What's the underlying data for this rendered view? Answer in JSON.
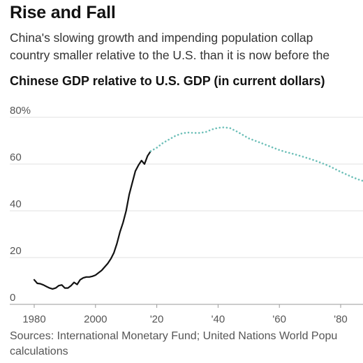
{
  "header": {
    "title": "Rise and Fall",
    "subtitle_line1": "China's slowing growth and impending population collap",
    "subtitle_line2": "country smaller relative to the U.S. than it is now before the"
  },
  "chart_title": "Chinese GDP relative to U.S. GDP (in current dollars)",
  "source_line1": "Sources: International Monetary Fund; United Nations World Popu",
  "source_line2": "calculations",
  "colors": {
    "actual": "#121212",
    "projected": "#6dbfb8",
    "grid": "#e0e0e0"
  },
  "chart_data": {
    "type": "line",
    "title": "Chinese GDP relative to U.S. GDP (in current dollars)",
    "xlabel": "",
    "ylabel": "",
    "xlim": [
      1975,
      2090
    ],
    "ylim": [
      0,
      80
    ],
    "y_ticks": [
      {
        "value": 0,
        "label": "0"
      },
      {
        "value": 20,
        "label": "20"
      },
      {
        "value": 40,
        "label": "40"
      },
      {
        "value": 60,
        "label": "60"
      },
      {
        "value": 80,
        "label": "80%"
      }
    ],
    "x_ticks": [
      {
        "value": 1980,
        "label": "1980"
      },
      {
        "value": 2000,
        "label": "2000"
      },
      {
        "value": 2020,
        "label": "'20"
      },
      {
        "value": 2040,
        "label": "'40"
      },
      {
        "value": 2060,
        "label": "'60"
      },
      {
        "value": 2080,
        "label": "'80"
      }
    ],
    "grid": true,
    "series": [
      {
        "style": "solid",
        "x": [
          1980,
          1981,
          1982,
          1983,
          1984,
          1985,
          1986,
          1987,
          1988,
          1989,
          1990,
          1991,
          1992,
          1993,
          1994,
          1995,
          1996,
          1997,
          1998,
          1999,
          2000,
          2001,
          2002,
          2003,
          2004,
          2005,
          2006,
          2007,
          2008,
          2009,
          2010,
          2011,
          2012,
          2013,
          2014,
          2015,
          2016,
          2017,
          2018
        ],
        "y": [
          10.5,
          9,
          8.8,
          8.3,
          7.6,
          7,
          6.6,
          7,
          8,
          8.3,
          7,
          7,
          8,
          9.4,
          8.5,
          10.5,
          11.3,
          11.7,
          11.7,
          12,
          12.5,
          13.5,
          14.5,
          16,
          17.5,
          19.5,
          22,
          26,
          31,
          35,
          40,
          47,
          52,
          57,
          59.5,
          61.5,
          60,
          63.5,
          65.5
        ]
      },
      {
        "style": "dotted",
        "x": [
          2018,
          2020,
          2022,
          2024,
          2026,
          2028,
          2030,
          2032,
          2034,
          2036,
          2038,
          2040,
          2042,
          2044,
          2046,
          2048,
          2050,
          2052,
          2054,
          2056,
          2058,
          2060,
          2062,
          2064,
          2066,
          2068,
          2070,
          2072,
          2074,
          2076,
          2078,
          2080,
          2082,
          2084,
          2086,
          2088,
          2090
        ],
        "y": [
          65.5,
          67,
          69,
          70.5,
          72,
          73,
          73.5,
          73.3,
          73.3,
          73.7,
          74.8,
          75.5,
          75.7,
          75.3,
          74,
          72.5,
          71,
          70,
          69,
          68,
          67,
          66,
          65.2,
          64.5,
          63.8,
          63,
          62.2,
          61.3,
          60.3,
          59.3,
          58,
          56.7,
          55.5,
          54.3,
          53.3,
          52.5,
          52
        ]
      }
    ]
  }
}
